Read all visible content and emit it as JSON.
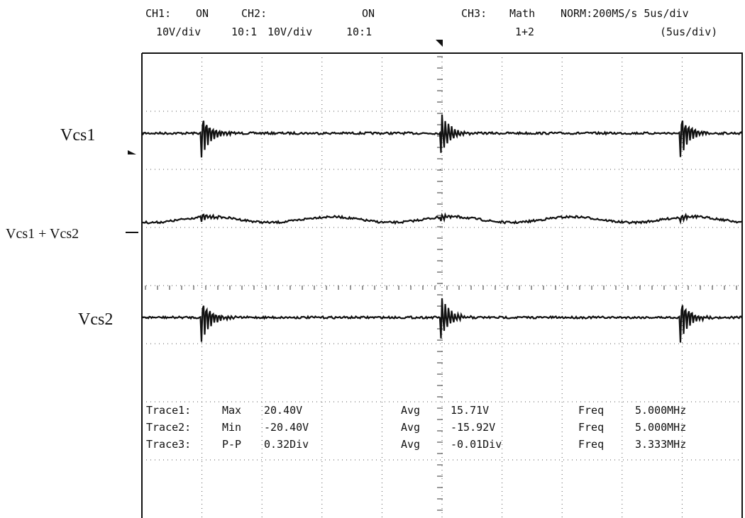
{
  "header": {
    "row1": [
      "CH1:",
      "ON",
      "CH2:",
      "ON",
      "CH3:",
      "Math",
      "NORM:200MS/s 5us/div"
    ],
    "row2": [
      "10V/div",
      "10:1",
      "10V/div",
      "10:1",
      "1+2",
      "(5us/div)"
    ]
  },
  "traces": [
    "Vcs1",
    "Vcs1 + Vcs2",
    "Vcs2"
  ],
  "measurements": [
    [
      "Trace1:",
      "Max",
      "20.40V",
      "Avg",
      "15.71V",
      "Freq",
      "5.000MHz"
    ],
    [
      "Trace2:",
      "Min",
      "-20.40V",
      "Avg",
      "-15.92V",
      "Freq",
      "5.000MHz"
    ],
    [
      "Trace3:",
      "P-P",
      "0.32Div",
      "Avg",
      "-0.01Div",
      "Freq",
      "3.333MHz"
    ]
  ]
}
